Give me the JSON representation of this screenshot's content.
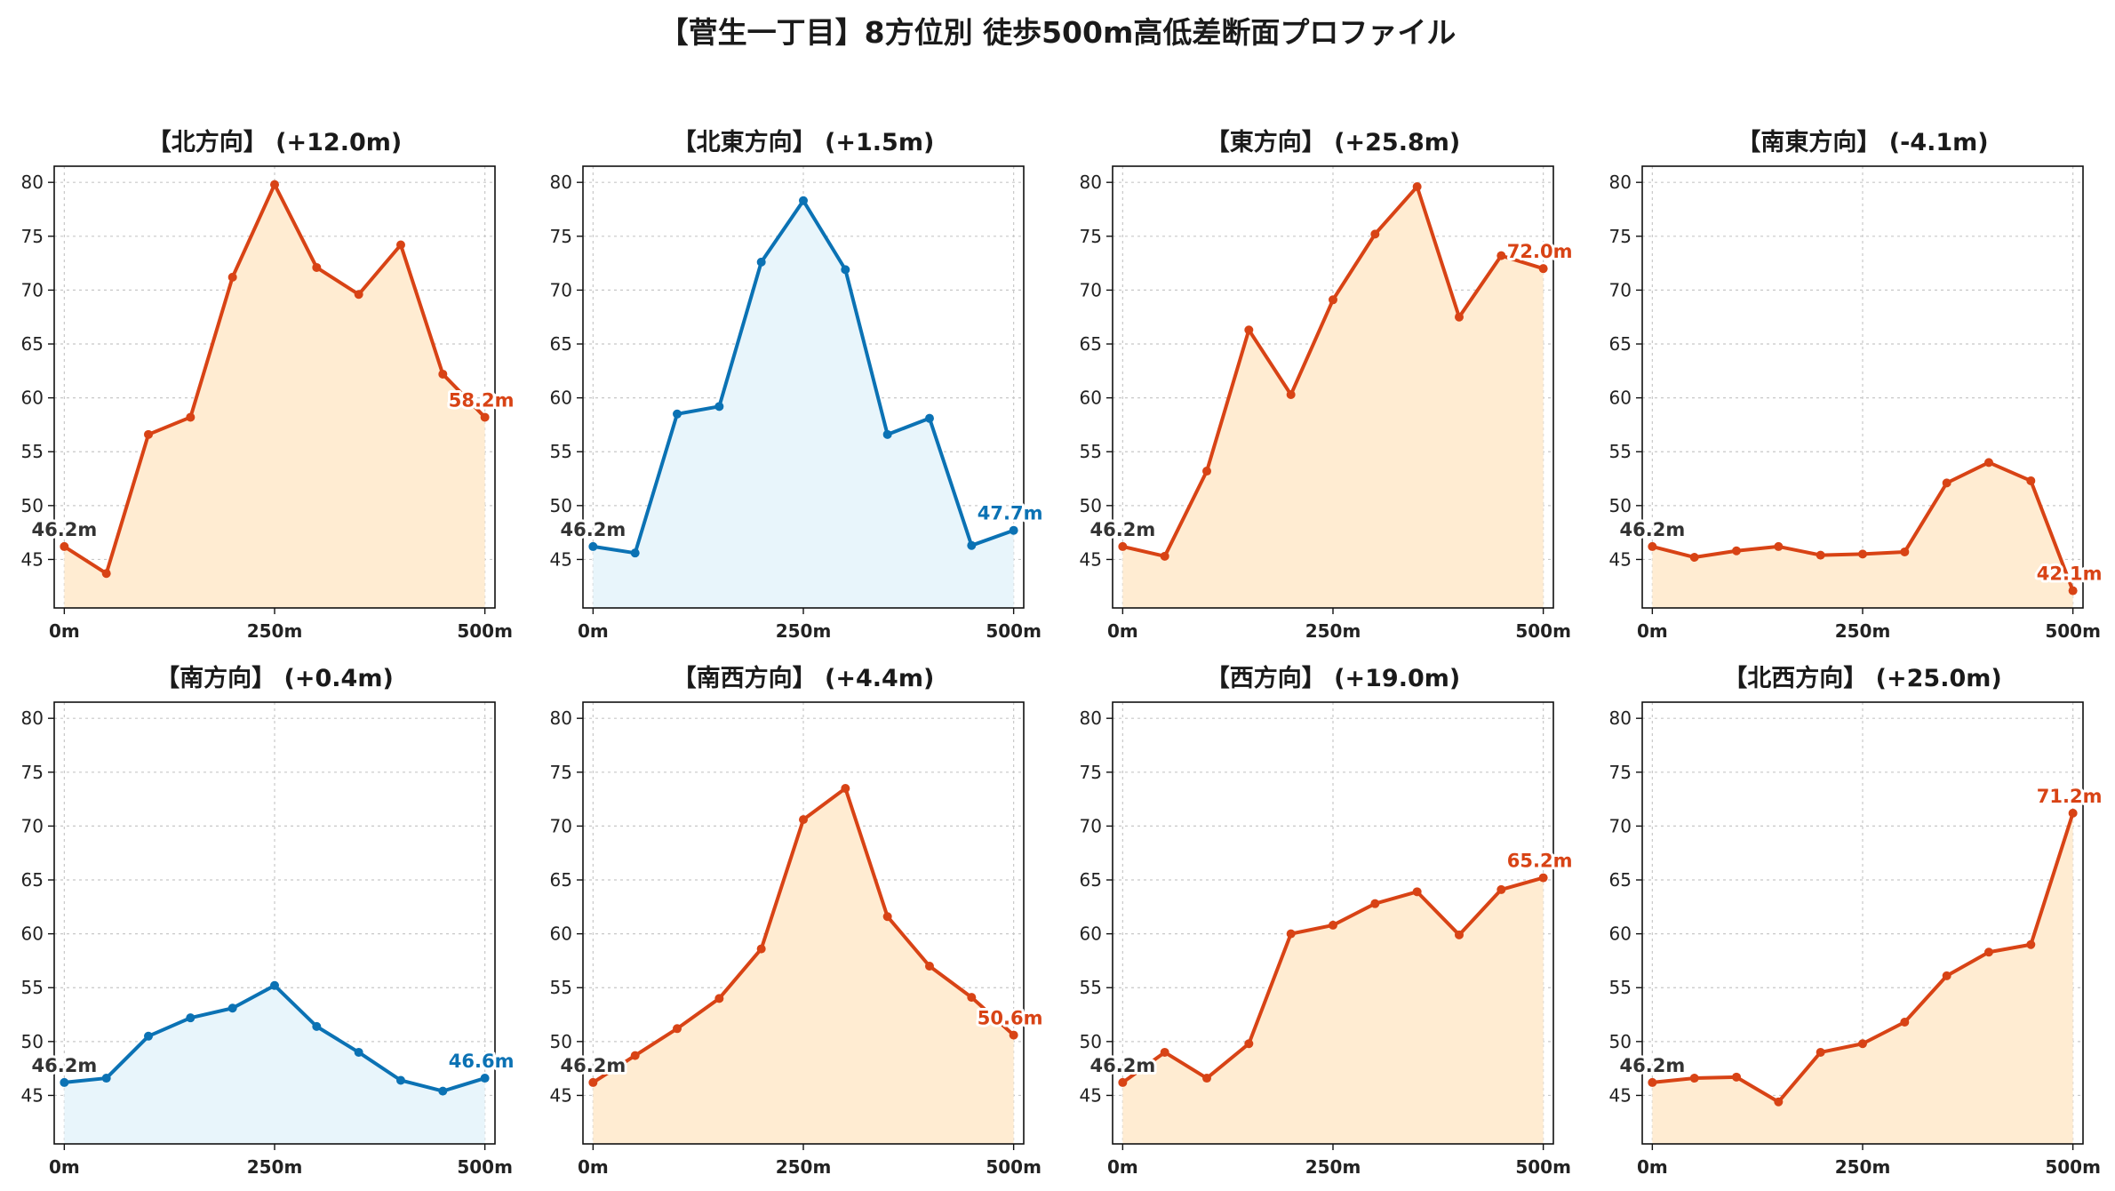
{
  "title": "【菅生一丁目】8方位別 徒歩500m高低差断面プロファイル",
  "colors": {
    "up_line": "#d84315",
    "up_fill": "#ffecd2",
    "down_line": "#0b72b4",
    "down_fill": "#e8f5fb",
    "start_label": "#333333"
  },
  "chart_data": [
    {
      "type": "area",
      "title": "【北方向】 (+12.0m)",
      "trend": "up",
      "x": [
        0,
        50,
        100,
        150,
        200,
        250,
        300,
        350,
        400,
        450,
        500
      ],
      "y": [
        46.2,
        43.7,
        56.6,
        58.2,
        71.2,
        79.8,
        72.1,
        69.6,
        74.2,
        62.2,
        58.2
      ],
      "start_label": "46.2m",
      "end_label": "58.2m",
      "xticks": [
        "0m",
        "250m",
        "500m"
      ],
      "yticks": [
        45,
        50,
        55,
        60,
        65,
        70,
        75,
        80
      ],
      "xlim": [
        -12,
        512
      ],
      "ylim": [
        40.5,
        81.5
      ],
      "grid": true
    },
    {
      "type": "area",
      "title": "【北東方向】 (+1.5m)",
      "trend": "down",
      "x": [
        0,
        50,
        100,
        150,
        200,
        250,
        300,
        350,
        400,
        450,
        500
      ],
      "y": [
        46.2,
        45.6,
        58.5,
        59.2,
        72.6,
        78.3,
        71.9,
        56.6,
        58.1,
        46.3,
        47.7
      ],
      "start_label": "46.2m",
      "end_label": "47.7m",
      "xticks": [
        "0m",
        "250m",
        "500m"
      ],
      "yticks": [
        45,
        50,
        55,
        60,
        65,
        70,
        75,
        80
      ],
      "xlim": [
        -12,
        512
      ],
      "ylim": [
        40.5,
        81.5
      ],
      "grid": true
    },
    {
      "type": "area",
      "title": "【東方向】 (+25.8m)",
      "trend": "up",
      "x": [
        0,
        50,
        100,
        150,
        200,
        250,
        300,
        350,
        400,
        450,
        500
      ],
      "y": [
        46.2,
        45.3,
        53.2,
        66.3,
        60.3,
        69.1,
        75.2,
        79.6,
        67.5,
        73.2,
        72.0
      ],
      "start_label": "46.2m",
      "end_label": "72.0m",
      "xticks": [
        "0m",
        "250m",
        "500m"
      ],
      "yticks": [
        45,
        50,
        55,
        60,
        65,
        70,
        75,
        80
      ],
      "xlim": [
        -12,
        512
      ],
      "ylim": [
        40.5,
        81.5
      ],
      "grid": true
    },
    {
      "type": "area",
      "title": "【南東方向】 (-4.1m)",
      "trend": "up",
      "x": [
        0,
        50,
        100,
        150,
        200,
        250,
        300,
        350,
        400,
        450,
        500
      ],
      "y": [
        46.2,
        45.2,
        45.8,
        46.2,
        45.4,
        45.5,
        45.7,
        52.1,
        54.0,
        52.3,
        42.1
      ],
      "start_label": "46.2m",
      "end_label": "42.1m",
      "xticks": [
        "0m",
        "250m",
        "500m"
      ],
      "yticks": [
        45,
        50,
        55,
        60,
        65,
        70,
        75,
        80
      ],
      "xlim": [
        -12,
        512
      ],
      "ylim": [
        40.5,
        81.5
      ],
      "grid": true
    },
    {
      "type": "area",
      "title": "【南方向】 (+0.4m)",
      "trend": "down",
      "x": [
        0,
        50,
        100,
        150,
        200,
        250,
        300,
        350,
        400,
        450,
        500
      ],
      "y": [
        46.2,
        46.6,
        50.5,
        52.2,
        53.1,
        55.2,
        51.4,
        49.0,
        46.4,
        45.4,
        46.6
      ],
      "start_label": "46.2m",
      "end_label": "46.6m",
      "xticks": [
        "0m",
        "250m",
        "500m"
      ],
      "yticks": [
        45,
        50,
        55,
        60,
        65,
        70,
        75,
        80
      ],
      "xlim": [
        -12,
        512
      ],
      "ylim": [
        40.5,
        81.5
      ],
      "grid": true
    },
    {
      "type": "area",
      "title": "【南西方向】 (+4.4m)",
      "trend": "up",
      "x": [
        0,
        50,
        100,
        150,
        200,
        250,
        300,
        350,
        400,
        450,
        500
      ],
      "y": [
        46.2,
        48.7,
        51.2,
        54.0,
        58.6,
        70.6,
        73.5,
        61.6,
        57.0,
        54.1,
        50.6
      ],
      "start_label": "46.2m",
      "end_label": "50.6m",
      "xticks": [
        "0m",
        "250m",
        "500m"
      ],
      "yticks": [
        45,
        50,
        55,
        60,
        65,
        70,
        75,
        80
      ],
      "xlim": [
        -12,
        512
      ],
      "ylim": [
        40.5,
        81.5
      ],
      "grid": true
    },
    {
      "type": "area",
      "title": "【西方向】 (+19.0m)",
      "trend": "up",
      "x": [
        0,
        50,
        100,
        150,
        200,
        250,
        300,
        350,
        400,
        450,
        500
      ],
      "y": [
        46.2,
        49.0,
        46.6,
        49.8,
        60.0,
        60.8,
        62.8,
        63.9,
        59.9,
        64.1,
        65.2
      ],
      "start_label": "46.2m",
      "end_label": "65.2m",
      "xticks": [
        "0m",
        "250m",
        "500m"
      ],
      "yticks": [
        45,
        50,
        55,
        60,
        65,
        70,
        75,
        80
      ],
      "xlim": [
        -12,
        512
      ],
      "ylim": [
        40.5,
        81.5
      ],
      "grid": true
    },
    {
      "type": "area",
      "title": "【北西方向】 (+25.0m)",
      "trend": "up",
      "x": [
        0,
        50,
        100,
        150,
        200,
        250,
        300,
        350,
        400,
        450,
        500
      ],
      "y": [
        46.2,
        46.6,
        46.7,
        44.4,
        49.0,
        49.8,
        51.8,
        56.1,
        58.3,
        59.0,
        71.2
      ],
      "start_label": "46.2m",
      "end_label": "71.2m",
      "xticks": [
        "0m",
        "250m",
        "500m"
      ],
      "yticks": [
        45,
        50,
        55,
        60,
        65,
        70,
        75,
        80
      ],
      "xlim": [
        -12,
        512
      ],
      "ylim": [
        40.5,
        81.5
      ],
      "grid": true
    }
  ]
}
